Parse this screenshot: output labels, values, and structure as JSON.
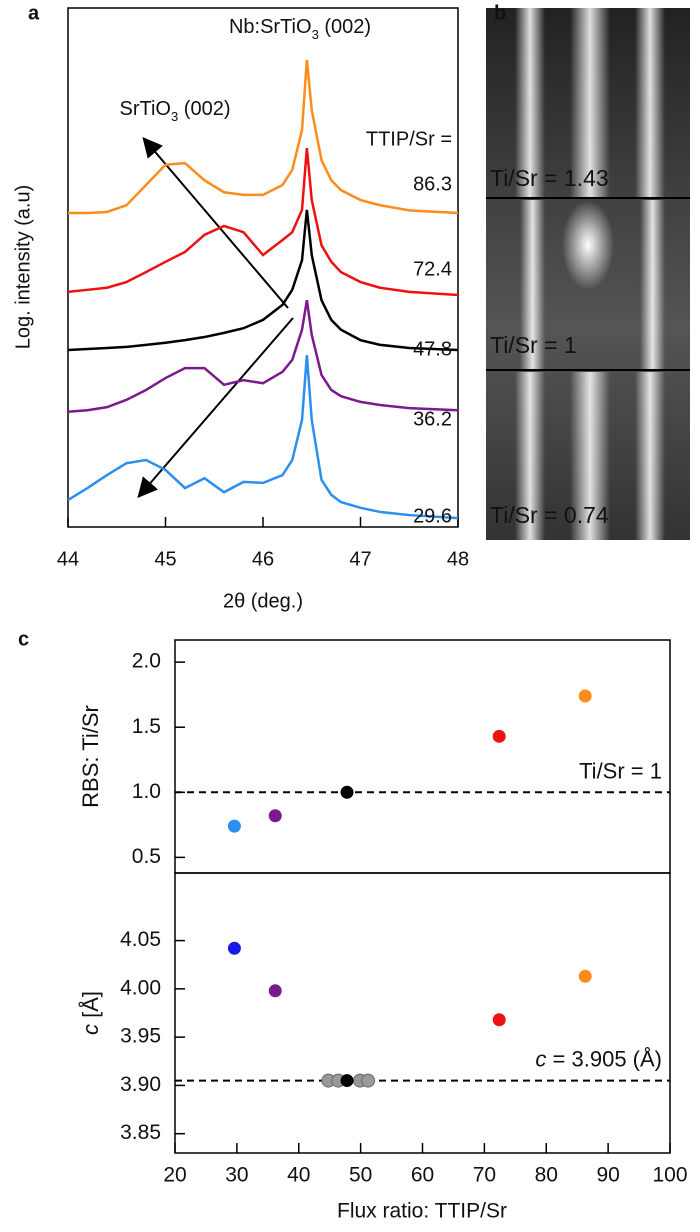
{
  "chart_data": [
    {
      "type": "line",
      "panel_label": "a",
      "annotations": [
        {
          "parts": [
            "Nb:SrTiO",
            "3",
            " (002)"
          ]
        },
        {
          "parts": [
            "SrTiO",
            "3",
            " (002)"
          ]
        }
      ],
      "legend_title": "TTIP/Sr =",
      "xlabel": "2θ (deg.)",
      "ylabel": "Log. intensity (a.u)",
      "xlim": [
        44,
        48
      ],
      "xticks": [
        44,
        45,
        46,
        47,
        48
      ],
      "ylim": [
        0,
        100
      ],
      "x": [
        44,
        44.2,
        44.4,
        44.6,
        44.8,
        45.0,
        45.2,
        45.4,
        45.6,
        45.8,
        46.0,
        46.2,
        46.3,
        46.4,
        46.45,
        46.5,
        46.6,
        46.7,
        46.8,
        47.0,
        47.2,
        47.5,
        48
      ],
      "series": [
        {
          "name": "86.3",
          "color": "#ff8c1a",
          "values": [
            60.5,
            60.5,
            60.7,
            62.0,
            65.9,
            69.8,
            70.1,
            66.8,
            64.5,
            64.0,
            64.0,
            65.9,
            68.8,
            76.5,
            90.0,
            80.3,
            70.7,
            66.8,
            64.9,
            63.0,
            62.0,
            61.0,
            60.5
          ]
        },
        {
          "name": "72.4",
          "color": "#ee1111",
          "values": [
            45.3,
            45.7,
            46.1,
            47.2,
            49.1,
            51.1,
            53.0,
            56.3,
            58.0,
            56.8,
            52.4,
            55.3,
            56.8,
            61.1,
            73.0,
            63.0,
            54.3,
            51.1,
            49.1,
            47.2,
            46.1,
            45.3,
            44.7
          ]
        },
        {
          "name": "47.8",
          "color": "#000000",
          "values": [
            34.1,
            34.3,
            34.5,
            34.7,
            35.1,
            35.5,
            36.0,
            36.6,
            37.4,
            38.3,
            39.9,
            42.8,
            45.7,
            51.4,
            61.1,
            52.4,
            43.7,
            39.9,
            38.0,
            36.0,
            35.1,
            34.5,
            34.1
          ]
        },
        {
          "name": "36.2",
          "color": "#7b1a8c",
          "values": [
            22.2,
            22.5,
            23.1,
            24.5,
            26.4,
            28.7,
            30.6,
            30.6,
            27.4,
            28.3,
            27.7,
            29.9,
            32.2,
            38.0,
            43.7,
            37.0,
            29.3,
            26.4,
            25.2,
            24.1,
            23.5,
            22.9,
            22.5
          ]
        },
        {
          "name": "29.6",
          "color": "#2b8ff0",
          "values": [
            5.2,
            7.5,
            10.0,
            12.3,
            12.9,
            11.0,
            7.5,
            9.4,
            6.7,
            8.7,
            8.5,
            10.0,
            12.9,
            20.6,
            33.1,
            20.6,
            9.1,
            6.2,
            4.8,
            3.7,
            2.9,
            2.3,
            1.7
          ]
        }
      ]
    },
    {
      "type": "scatter",
      "panel_label": "c",
      "ylabel": "RBS: Ti/Sr",
      "xlim": [
        20,
        100
      ],
      "ylim": [
        0.38,
        2.17
      ],
      "yticks": [
        {
          "value": 0.5,
          "label": "0.5"
        },
        {
          "value": 1.0,
          "label": "1.0"
        },
        {
          "value": 1.5,
          "label": "1.5"
        },
        {
          "value": 2.0,
          "label": "2.0"
        }
      ],
      "reference": {
        "value": 1.0,
        "label": "Ti/Sr = 1"
      },
      "series": [
        {
          "x": [
            29.6,
            36.2,
            47.8,
            72.4,
            86.3
          ],
          "values": [
            0.74,
            0.82,
            1.0,
            1.43,
            1.74
          ],
          "colors": [
            "#2b8ff0",
            "#7b1a8c",
            "#000000",
            "#ee1111",
            "#ff8c1a"
          ]
        }
      ]
    },
    {
      "type": "scatter",
      "ylabel": {
        "italic": "c",
        "text": " [Å]"
      },
      "xlabel": "Flux ratio: TTIP/Sr",
      "xlim": [
        20,
        100
      ],
      "xticks": [
        20,
        30,
        40,
        50,
        60,
        70,
        80,
        90,
        100
      ],
      "ylim": [
        3.83,
        4.12
      ],
      "yticks": [
        3.85,
        {
          "value": 3.9,
          "label": "3.90"
        },
        3.95,
        {
          "value": 4.0,
          "label": "4.00"
        },
        4.05
      ],
      "reference": {
        "value": 3.905,
        "italic": "c",
        "text": " = 3.905 (Å)"
      },
      "series": [
        {
          "x": [
            44.8,
            46.4,
            49.9,
            51.2
          ],
          "values": [
            3.905,
            3.905,
            3.905,
            3.905
          ],
          "colors": [
            "#999999",
            "#999999",
            "#999999",
            "#999999"
          ]
        },
        {
          "x": [
            29.6,
            36.2,
            47.8,
            72.4,
            86.3
          ],
          "values": [
            4.042,
            3.998,
            3.905,
            3.968,
            4.013
          ],
          "colors": [
            "#1a1ae6",
            "#7b1a8c",
            "#000000",
            "#ee1111",
            "#ff8c1a"
          ]
        }
      ]
    }
  ],
  "panel_b": {
    "label": "b",
    "captions": [
      {
        "text": "Ti/Sr = 1.43",
        "color": "#ff2020"
      },
      {
        "text": "Ti/Sr = 1",
        "color": "#ffffff"
      },
      {
        "text": "Ti/Sr = 0.74",
        "color": "#2b8ff0"
      }
    ]
  }
}
